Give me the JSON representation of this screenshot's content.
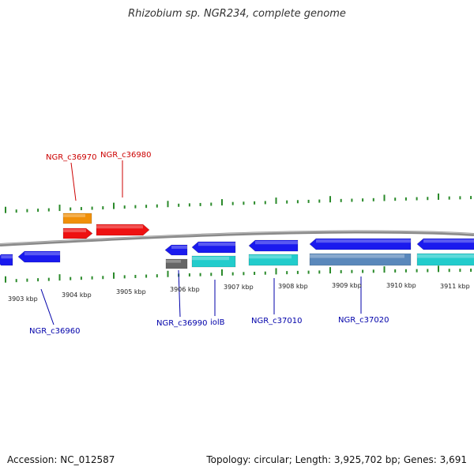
{
  "title": "Rhizobium sp. NGR234, complete genome",
  "footer": {
    "accession": "Accession: NC_012587",
    "stats": "Topology: circular; Length: 3,925,702 bp; Genes: 3,691"
  },
  "colors": {
    "backbone": "#8a8a8a",
    "tick": "#2a8a2a",
    "label_forward": "#cc0000",
    "label_reverse": "#0000aa"
  },
  "scale": {
    "unit": "kbp",
    "labels": [
      "3903 kbp",
      "3904 kbp",
      "3905 kbp",
      "3906 kbp",
      "3907 kbp",
      "3908 kbp",
      "3909 kbp",
      "3910 kbp",
      "3911 kbp"
    ]
  },
  "genes": [
    {
      "id": "g-fwd-orange",
      "strand": "forward",
      "lane": 1,
      "color": "#f0900a",
      "label": ""
    },
    {
      "id": "g-fwd-red-1",
      "strand": "forward",
      "lane": 2,
      "color": "#ee1111",
      "label": "NGR_c36970"
    },
    {
      "id": "g-fwd-red-2",
      "strand": "forward",
      "lane": 2,
      "color": "#ee1111",
      "label": "NGR_c36980"
    },
    {
      "id": "g-rev-blue-a",
      "strand": "reverse",
      "lane": 1,
      "color": "#1a1aee",
      "label": ""
    },
    {
      "id": "g-rev-blue-b",
      "strand": "reverse",
      "lane": 1,
      "color": "#1a1aee",
      "label": "NGR_c36960"
    },
    {
      "id": "g-rev-blue-c",
      "strand": "reverse",
      "lane": 1,
      "color": "#1a1aee",
      "label": ""
    },
    {
      "id": "g-rev-blue-d",
      "strand": "reverse",
      "lane": 1,
      "color": "#1a1aee",
      "label": ""
    },
    {
      "id": "g-rev-blue-e",
      "strand": "reverse",
      "lane": 1,
      "color": "#1a1aee",
      "label": "NGR_c37010"
    },
    {
      "id": "g-rev-blue-f",
      "strand": "reverse",
      "lane": 1,
      "color": "#1a1aee",
      "label": ""
    },
    {
      "id": "g-rev-blue-g",
      "strand": "reverse",
      "lane": 1,
      "color": "#1a1aee",
      "label": ""
    },
    {
      "id": "g-rev-gray",
      "strand": "reverse",
      "lane": 2,
      "color": "#666666",
      "label": "NGR_c36990"
    },
    {
      "id": "g-rev-cyan-1",
      "strand": "reverse",
      "lane": 2,
      "color": "#22cccc",
      "label": "iolB"
    },
    {
      "id": "g-rev-cyan-2",
      "strand": "reverse",
      "lane": 2,
      "color": "#22cccc",
      "label": ""
    },
    {
      "id": "g-rev-steel",
      "strand": "reverse",
      "lane": 2,
      "color": "#5a88bb",
      "label": "NGR_c37020"
    },
    {
      "id": "g-rev-cyan-3",
      "strand": "reverse",
      "lane": 2,
      "color": "#22cccc",
      "label": ""
    }
  ]
}
